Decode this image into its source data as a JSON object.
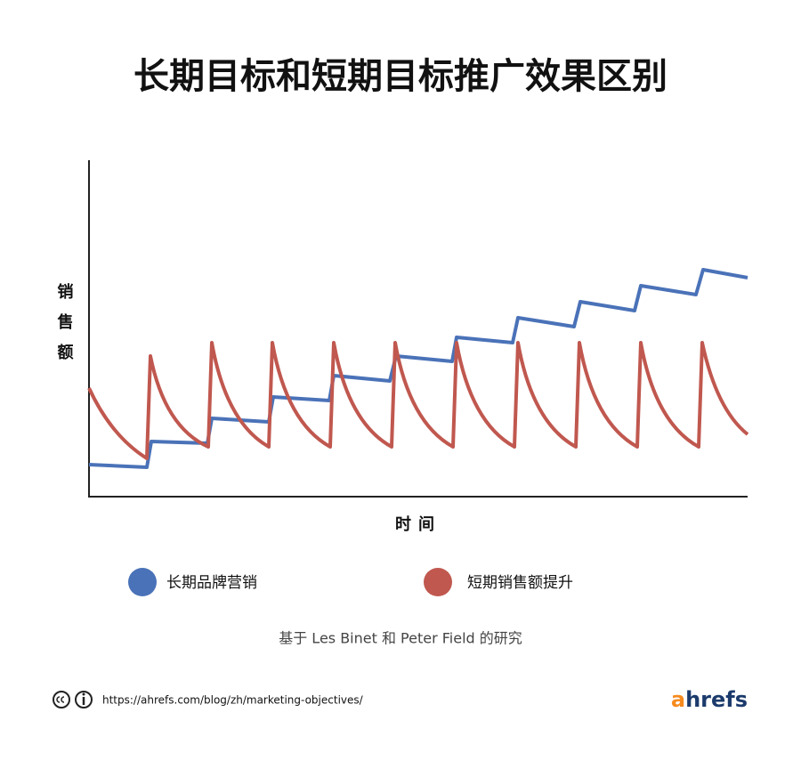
{
  "chart_data": {
    "type": "illustration",
    "title": "长期目标和短期目标推广效果区别",
    "y_axis_label": "销售额",
    "x_axis_label": "时间",
    "legend": [
      {
        "name": "长期品牌营销",
        "color": "#4a72b8"
      },
      {
        "name": "短期销售额提升",
        "color": "#c0584f"
      }
    ],
    "source": "基于 Les Binet 和 Peter Field 的研究",
    "url": "https://ahrefs.com/blog/zh/marketing-objectives/",
    "brand": {
      "first": "a",
      "rest": "hrefs"
    }
  }
}
